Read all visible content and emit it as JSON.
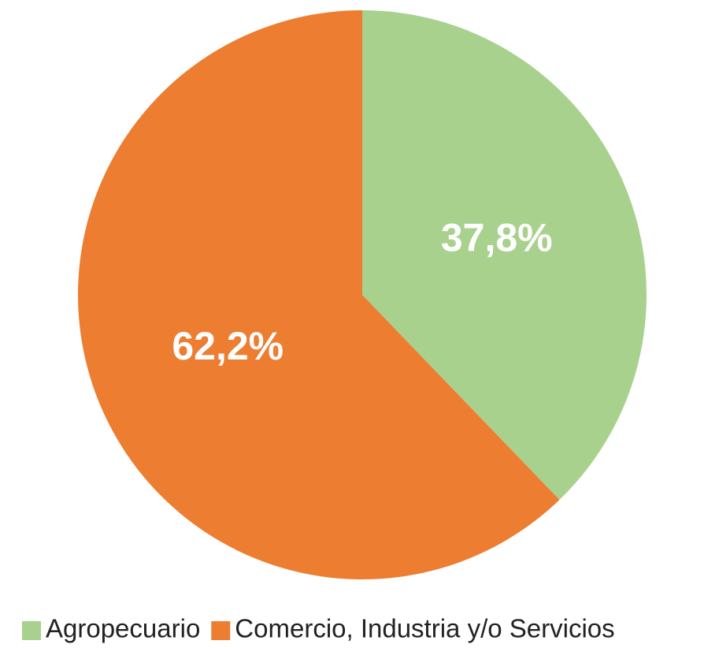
{
  "chart_data": {
    "type": "pie",
    "categories": [
      "Agropecuario",
      "Comercio, Industria y/o Servicios"
    ],
    "values": [
      37.8,
      62.2
    ],
    "value_labels": [
      "37,8%",
      "62,2%"
    ],
    "colors": [
      "#a9d18e",
      "#ed7d31"
    ],
    "legend": "bottom"
  }
}
